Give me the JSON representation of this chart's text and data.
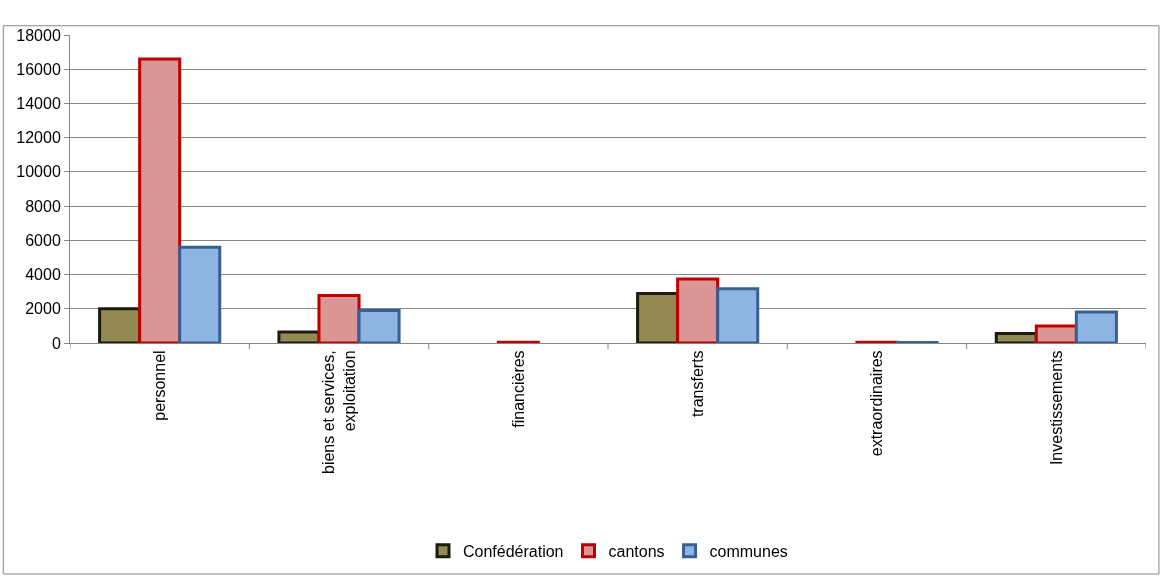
{
  "chart_data": {
    "type": "bar",
    "categories": [
      "personnel",
      "biens et services,\nexploitation",
      "financières",
      "transferts",
      "extraordinaires",
      "Investissements"
    ],
    "series": [
      {
        "name": "Confédération",
        "color": "#938953",
        "values": [
          2000,
          650,
          null,
          2900,
          null,
          550
        ]
      },
      {
        "name": "cantons",
        "color": "#d99694",
        "values": [
          16600,
          2770,
          50,
          3740,
          50,
          1000
        ]
      },
      {
        "name": "communes",
        "color": "#8eb4e3",
        "values": [
          5600,
          1900,
          null,
          3170,
          30,
          1810
        ]
      }
    ],
    "ylim": [
      0,
      18000
    ],
    "yticks": [
      0,
      2000,
      4000,
      6000,
      8000,
      10000,
      12000,
      14000,
      16000,
      18000
    ],
    "grid": "y",
    "legend": "bottom"
  }
}
